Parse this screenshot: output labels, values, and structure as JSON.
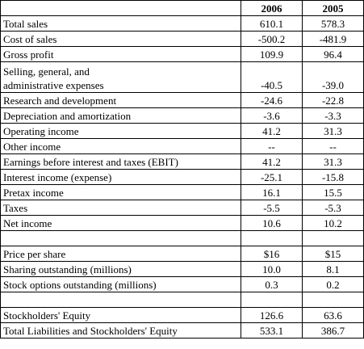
{
  "table": {
    "header": [
      "",
      "2006",
      "2005"
    ],
    "rows": [
      {
        "label": "Total sales",
        "v2006": "610.1",
        "v2005": "578.3"
      },
      {
        "label": "Cost of sales",
        "v2006": "-500.2",
        "v2005": "-481.9"
      },
      {
        "label": "Gross profit",
        "v2006": "109.9",
        "v2005": "96.4"
      },
      {
        "label_line1": "Selling, general, and",
        "label_line2": "administrative expenses",
        "v2006": "-40.5",
        "v2005": "-39.0"
      },
      {
        "label": "Research and development",
        "v2006": "-24.6",
        "v2005": "-22.8"
      },
      {
        "label": "Depreciation and amortization",
        "v2006": "-3.6",
        "v2005": "-3.3"
      },
      {
        "label": "Operating income",
        "v2006": "41.2",
        "v2005": "31.3"
      },
      {
        "label": "Other income",
        "v2006": "--",
        "v2005": "--"
      },
      {
        "label": "Earnings before interest and taxes (EBIT)",
        "v2006": "41.2",
        "v2005": "31.3"
      },
      {
        "label": "Interest income (expense)",
        "v2006": "-25.1",
        "v2005": "-15.8"
      },
      {
        "label": "Pretax income",
        "v2006": "16.1",
        "v2005": "15.5"
      },
      {
        "label": "Taxes",
        "v2006": "-5.5",
        "v2005": "-5.3"
      },
      {
        "label": "Net income",
        "v2006": "10.6",
        "v2005": "10.2"
      },
      {
        "label": "",
        "v2006": "",
        "v2005": ""
      },
      {
        "label": "Price per share",
        "v2006": "$16",
        "v2005": "$15"
      },
      {
        "label": "Sharing outstanding (millions)",
        "v2006": "10.0",
        "v2005": "8.1"
      },
      {
        "label": "Stock options outstanding (millions)",
        "v2006": "0.3",
        "v2005": "0.2"
      },
      {
        "label": "",
        "v2006": "",
        "v2005": ""
      },
      {
        "label": "Stockholders' Equity",
        "v2006": "126.6",
        "v2005": "63.6"
      },
      {
        "label": "Total Liabilities and Stockholders' Equity",
        "v2006": "533.1",
        "v2005": "386.7"
      }
    ]
  }
}
